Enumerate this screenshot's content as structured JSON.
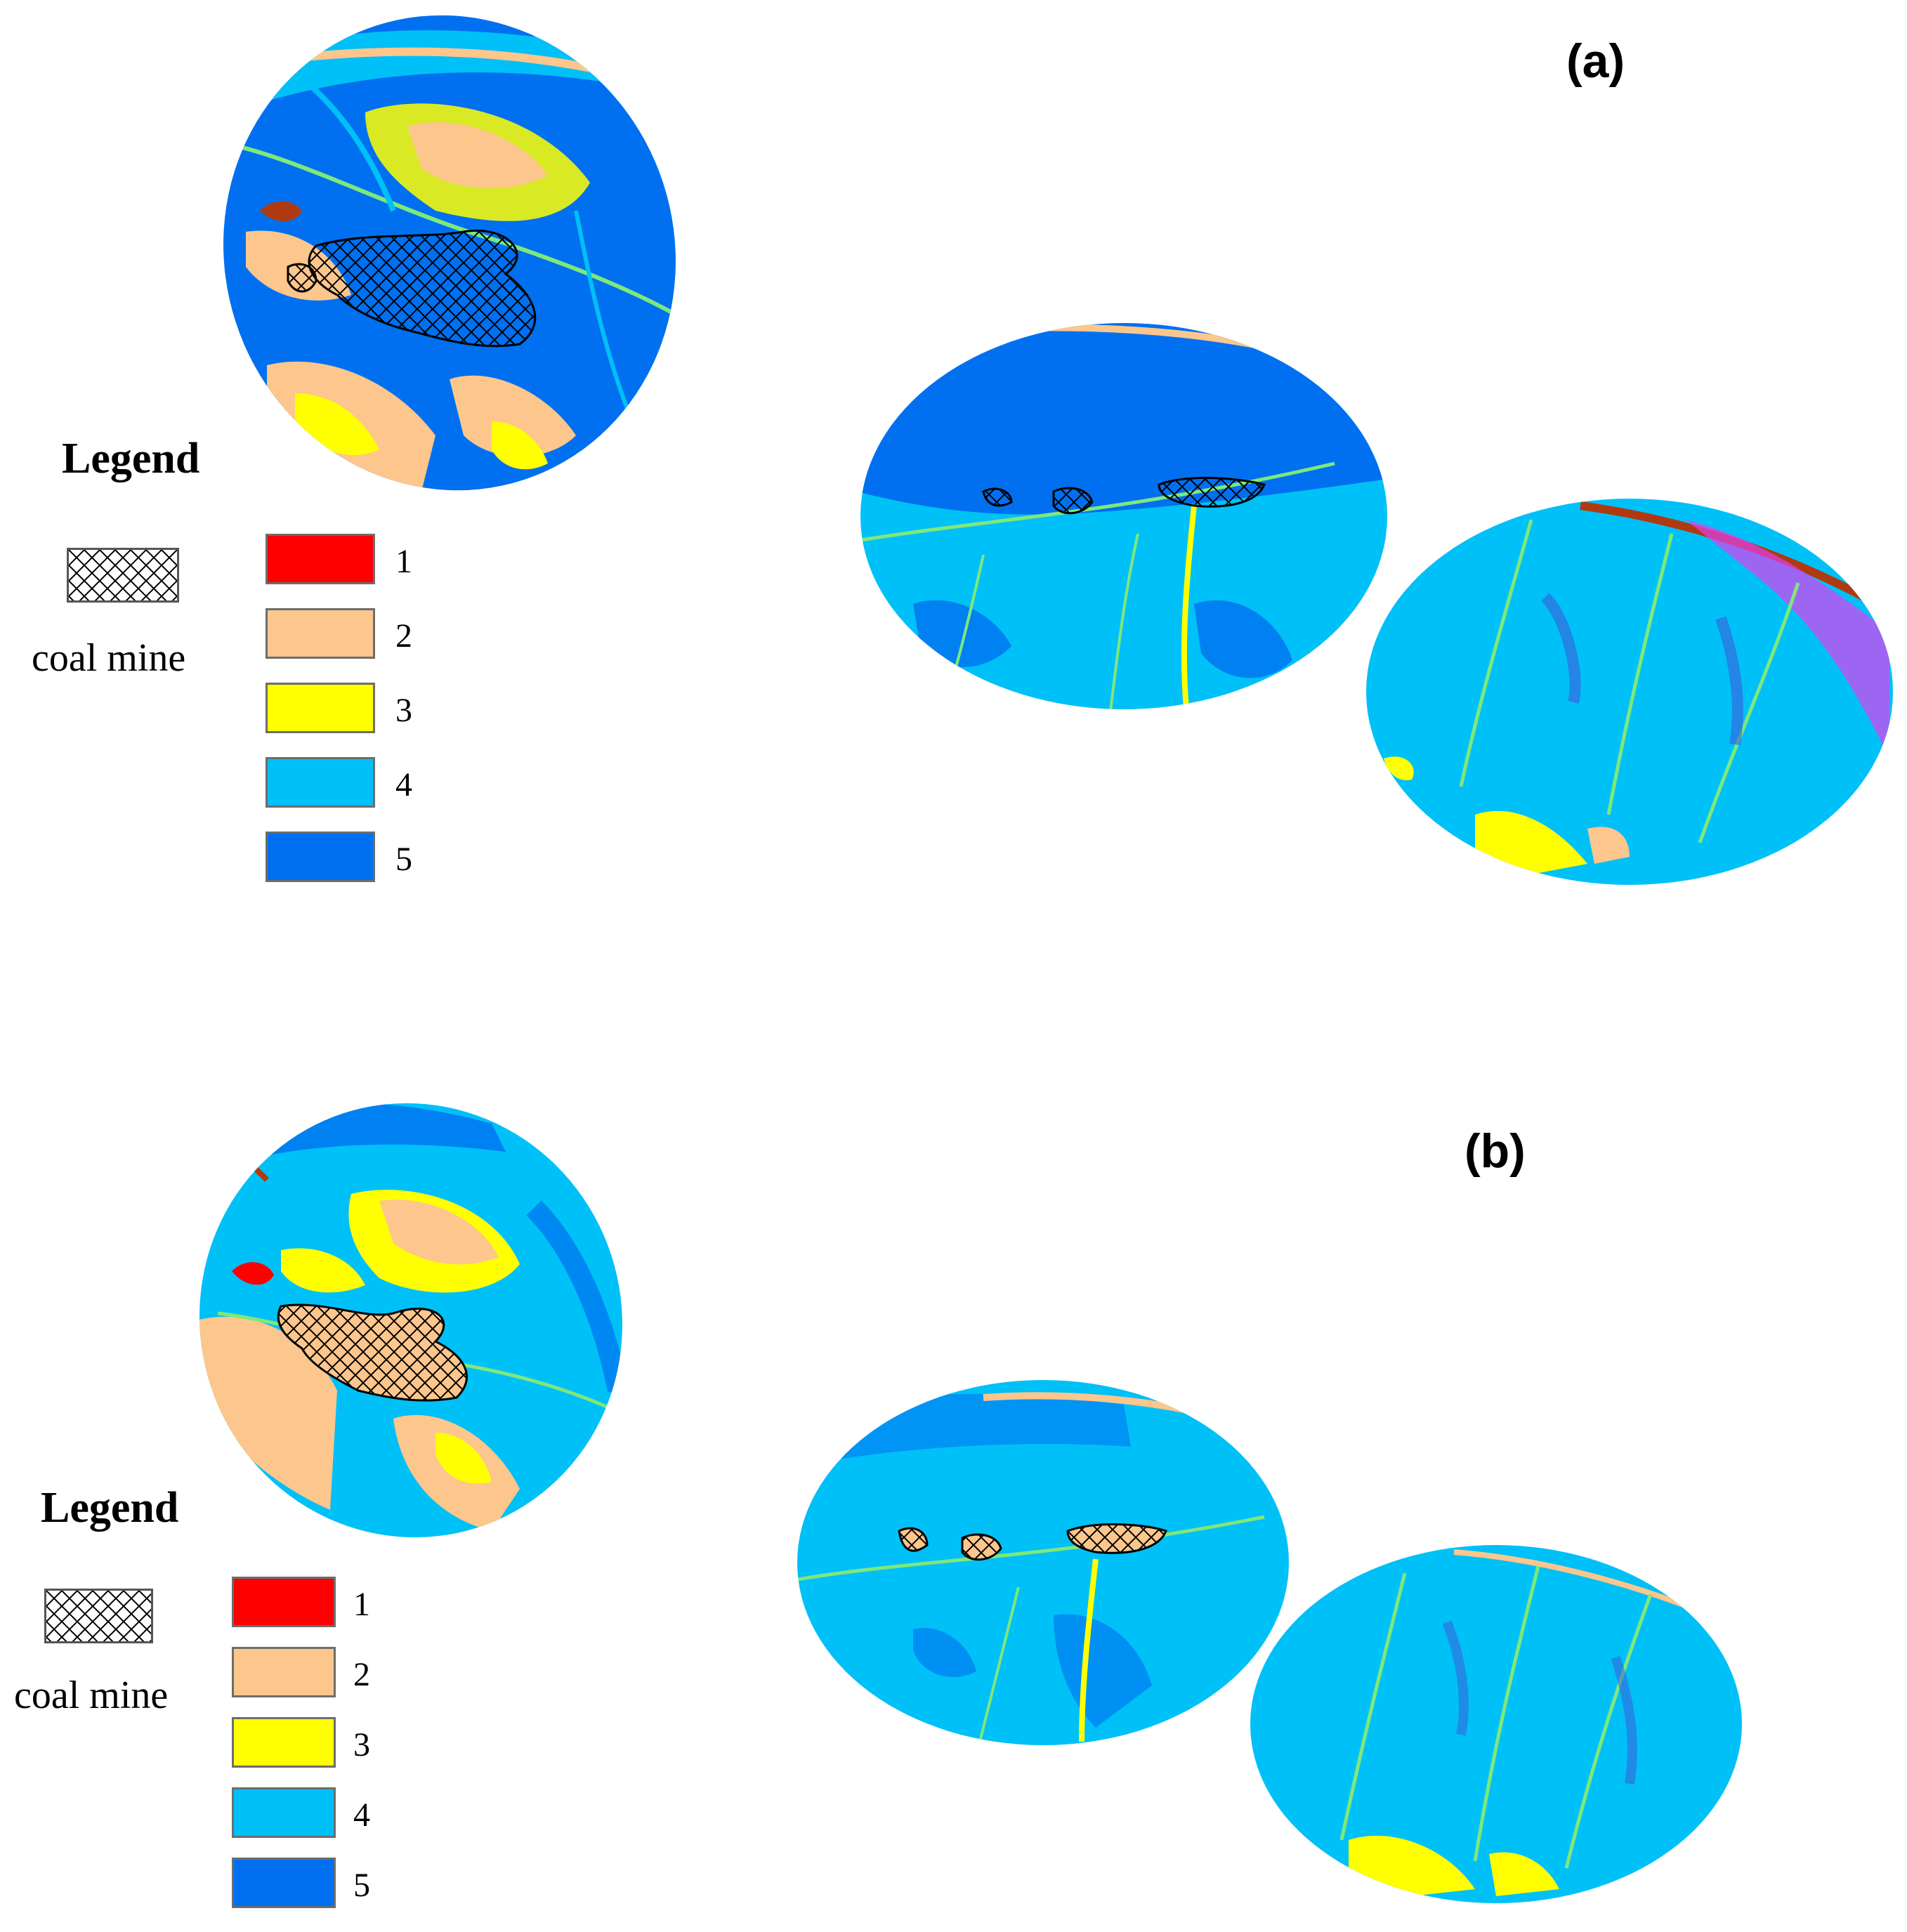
{
  "panels": [
    {
      "id": "a",
      "label": "(a)",
      "legend": {
        "title": "Legend",
        "mine_label": "coal mine",
        "classes": [
          {
            "label": "1",
            "color": "#ff0000"
          },
          {
            "label": "2",
            "color": "#fcc68c"
          },
          {
            "label": "3",
            "color": "#ffff00"
          },
          {
            "label": "4",
            "color": "#00c0f8"
          },
          {
            "label": "5",
            "color": "#0070f0"
          }
        ]
      }
    },
    {
      "id": "b",
      "label": "(b)",
      "legend": {
        "title": "Legend",
        "mine_label": "coal mine",
        "classes": [
          {
            "label": "1",
            "color": "#ff0000"
          },
          {
            "label": "2",
            "color": "#fcc68c"
          },
          {
            "label": "3",
            "color": "#ffff00"
          },
          {
            "label": "4",
            "color": "#00c0f8"
          },
          {
            "label": "5",
            "color": "#0070f0"
          }
        ]
      }
    }
  ],
  "colors": {
    "class_1": "#ff0000",
    "class_2": "#fcc68c",
    "class_3": "#ffff00",
    "class_4": "#00c0f8",
    "class_5": "#0070f0",
    "river_green": "#7ee87a",
    "magenta": "#e040f0",
    "brown": "#b03a10"
  }
}
